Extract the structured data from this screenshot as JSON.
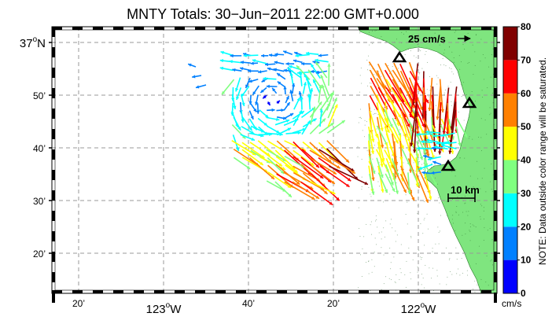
{
  "map": {
    "title": "MNTY Totals: 30−Jun−2011 22:00 GMT+0.000",
    "lat_labels": [
      {
        "text": "37",
        "deg": "o",
        "hemi": "N",
        "kind": "major",
        "lat": 37.0
      },
      {
        "text": "50’",
        "kind": "minor",
        "lat": 36.8333
      },
      {
        "text": "40’",
        "kind": "minor",
        "lat": 36.6667
      },
      {
        "text": "30’",
        "kind": "minor",
        "lat": 36.5
      },
      {
        "text": "20’",
        "kind": "minor",
        "lat": 36.3333
      }
    ],
    "lon_labels": [
      {
        "text": "20’",
        "kind": "minor",
        "lon": -123.3333
      },
      {
        "text": "123",
        "deg": "o",
        "hemi": "W",
        "kind": "major",
        "lon": -123.0
      },
      {
        "text": "40’",
        "kind": "minor",
        "lon": -122.6667
      },
      {
        "text": "20’",
        "kind": "minor",
        "lon": -122.3333
      },
      {
        "text": "122",
        "deg": "o",
        "hemi": "W",
        "kind": "major",
        "lon": -122.0
      }
    ],
    "scale_arrow_label": "25 cm/s",
    "scale_bar_label": "10 km",
    "sites": [
      "radar-site-1",
      "radar-site-2",
      "radar-site-3"
    ],
    "land_color": "#7fe57f",
    "grid": true
  },
  "colorbar": {
    "ticks": [
      "0",
      "10",
      "20",
      "30",
      "40",
      "50",
      "60",
      "70",
      "80"
    ],
    "colors": [
      "#0000ff",
      "#0080ff",
      "#00ffff",
      "#80ff80",
      "#ffff00",
      "#ff8000",
      "#ff0000",
      "#800000"
    ],
    "unit": "cm/s",
    "note": "NOTE: Data outside color range will be saturated."
  }
}
